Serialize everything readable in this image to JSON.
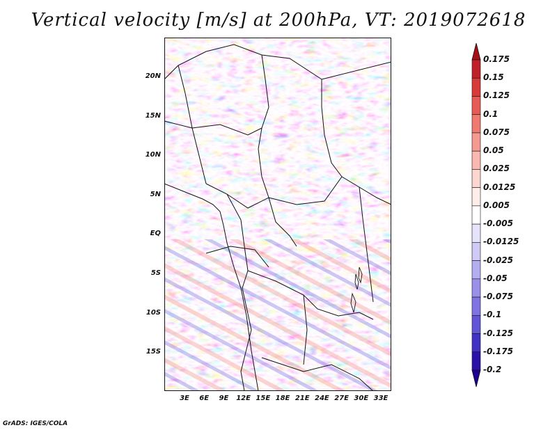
{
  "title": "Vertical velocity [m/s] at 200hPa, VT: 2019072618",
  "credit": "GrADS: IGES/COLA",
  "lat_labels": [
    "20N",
    "15N",
    "10N",
    "5N",
    "EQ",
    "5S",
    "10S",
    "15S"
  ],
  "lon_labels": [
    "3E",
    "6E",
    "9E",
    "12E",
    "15E",
    "18E",
    "21E",
    "24E",
    "27E",
    "30E",
    "33E"
  ],
  "colorbar": {
    "labels": [
      "0.175",
      "0.15",
      "0.125",
      "0.1",
      "0.075",
      "0.05",
      "0.025",
      "0.0125",
      "0.005",
      "-0.005",
      "-0.0125",
      "-0.025",
      "-0.05",
      "-0.075",
      "-0.1",
      "-0.125",
      "-0.175",
      "-0.2"
    ],
    "colors": [
      "#a50f15",
      "#c0202a",
      "#d83a3a",
      "#e85a55",
      "#f07a70",
      "#f59a90",
      "#f9b8b0",
      "#fcd6d0",
      "#feeeea",
      "#ffffff",
      "#e6e4fb",
      "#cfcbf6",
      "#b3aef0",
      "#9a90ea",
      "#7f74e2",
      "#6356d6",
      "#4232c4",
      "#2a12a8",
      "#1c0090"
    ]
  }
}
